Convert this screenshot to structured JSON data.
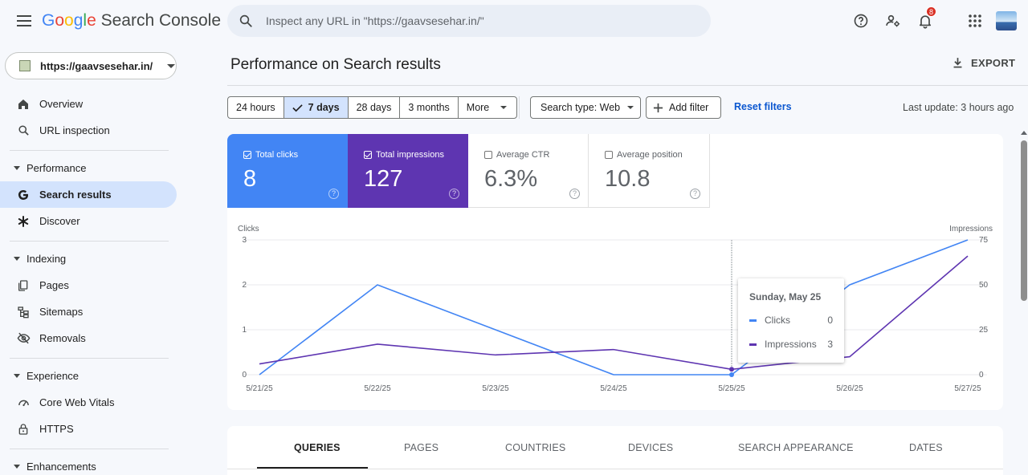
{
  "header": {
    "logo_google": [
      "G",
      "o",
      "o",
      "g",
      "l",
      "e"
    ],
    "logo_product": "Search Console",
    "search_placeholder": "Inspect any URL in \"https://gaavsesehar.in/\"",
    "notification_count": "8"
  },
  "sidebar": {
    "property_url": "https://gaavsesehar.in/",
    "items": [
      {
        "label": "Overview",
        "icon": "home-icon"
      },
      {
        "label": "URL inspection",
        "icon": "search-icon"
      }
    ],
    "sections": {
      "performance": {
        "label": "Performance",
        "items": [
          {
            "label": "Search results",
            "icon": "google-g-icon",
            "active": true
          },
          {
            "label": "Discover",
            "icon": "asterisk-icon"
          }
        ]
      },
      "indexing": {
        "label": "Indexing",
        "items": [
          {
            "label": "Pages",
            "icon": "pages-icon"
          },
          {
            "label": "Sitemaps",
            "icon": "sitemap-icon"
          },
          {
            "label": "Removals",
            "icon": "eye-off-icon"
          }
        ]
      },
      "experience": {
        "label": "Experience",
        "items": [
          {
            "label": "Core Web Vitals",
            "icon": "gauge-icon"
          },
          {
            "label": "HTTPS",
            "icon": "lock-icon"
          }
        ]
      },
      "enhancements": {
        "label": "Enhancements"
      }
    }
  },
  "main": {
    "title": "Performance on Search results",
    "export_label": "EXPORT",
    "date_options": [
      "24 hours",
      "7 days",
      "28 days",
      "3 months",
      "More"
    ],
    "selected_date": "7 days",
    "search_type": "Search type: Web",
    "add_filter": "Add filter",
    "reset_filters": "Reset filters",
    "last_update": "Last update: 3 hours ago"
  },
  "metrics": [
    {
      "label": "Total clicks",
      "value": "8",
      "checked": true,
      "color": "#4285f4"
    },
    {
      "label": "Total impressions",
      "value": "127",
      "checked": true,
      "color": "#5e35b1"
    },
    {
      "label": "Average CTR",
      "value": "6.3%",
      "checked": false
    },
    {
      "label": "Average position",
      "value": "10.8",
      "checked": false
    }
  ],
  "chart_data": {
    "type": "line",
    "x": [
      "5/21/25",
      "5/22/25",
      "5/23/25",
      "5/24/25",
      "5/25/25",
      "5/26/25",
      "5/27/25"
    ],
    "series": [
      {
        "name": "Clicks",
        "axis": "left",
        "color": "#4285f4",
        "values": [
          0,
          2,
          1,
          0,
          0,
          2,
          3
        ]
      },
      {
        "name": "Impressions",
        "axis": "right",
        "color": "#5e35b1",
        "values": [
          6,
          17,
          11,
          14,
          3,
          10,
          66
        ]
      }
    ],
    "left_axis": {
      "label": "Clicks",
      "ylim": [
        0,
        3
      ],
      "ticks": [
        0,
        1,
        2,
        3
      ]
    },
    "right_axis": {
      "label": "Impressions",
      "ylim": [
        0,
        75
      ],
      "ticks": [
        0,
        25,
        50,
        75
      ]
    },
    "grid": true
  },
  "tooltip": {
    "date": "Sunday, May 25",
    "rows": [
      {
        "name": "Clicks",
        "value": "0"
      },
      {
        "name": "Impressions",
        "value": "3"
      }
    ]
  },
  "tabs": [
    "QUERIES",
    "PAGES",
    "COUNTRIES",
    "DEVICES",
    "SEARCH APPEARANCE",
    "DATES"
  ],
  "active_tab": "QUERIES"
}
